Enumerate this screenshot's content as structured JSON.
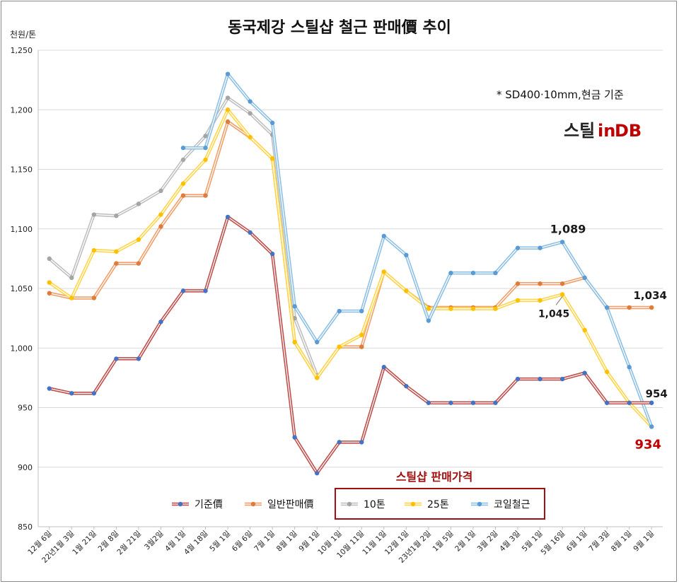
{
  "chart_data": {
    "type": "line",
    "title": "동국제강 스틸샵 철근 판매價 추이",
    "ylabel": "천원/톤",
    "ylim": [
      850,
      1250
    ],
    "yticks": [
      "850",
      "900",
      "950",
      "1,000",
      "1,050",
      "1,100",
      "1,150",
      "1,200",
      "1,250"
    ],
    "grid": "horizontal",
    "legend_position": "bottom",
    "categories": [
      "12월 6일",
      "22년1월 3일",
      "1월 21일",
      "2월 8일",
      "2월 21일",
      "3월2일",
      "4월 1일",
      "4월 18일",
      "5월 1일",
      "6월 6일",
      "7월 1일",
      "8월 1일",
      "9월 1일",
      "10월 1일",
      "10월 11일",
      "11월 1일",
      "12월 1일",
      "23년1월 2일",
      "1월 5일",
      "2월 1일",
      "3월 2일",
      "4월 3일",
      "5월 1일",
      "5월 16일",
      "6월 1일",
      "7월 3일",
      "8월 1일",
      "9월 1일"
    ],
    "series": [
      {
        "name": "기준價",
        "color": "#c0504d",
        "marker": "#4472c4",
        "values": [
          966,
          962,
          962,
          991,
          991,
          1022,
          1048,
          1048,
          1110,
          1097,
          1079,
          925,
          895,
          921,
          921,
          984,
          968,
          954,
          954,
          954,
          954,
          974,
          974,
          974,
          979,
          954,
          954,
          954
        ]
      },
      {
        "name": "일반판매價",
        "color": "#f0a06c",
        "marker": "#e07b39",
        "values": [
          1046,
          1042,
          1042,
          1071,
          1071,
          1102,
          1128,
          1128,
          1190,
          1177,
          1159,
          1005,
          975,
          1001,
          1001,
          1064,
          1048,
          1034,
          1034,
          1034,
          1034,
          1054,
          1054,
          1054,
          1059,
          1034,
          1034,
          1034
        ]
      },
      {
        "name": "10톤",
        "color": "#c0c0c0",
        "marker": "#a5a5a5",
        "values": [
          1075,
          1059,
          1112,
          1111,
          1121,
          1132,
          1158,
          1178,
          1210,
          1197,
          1179,
          1025,
          977,
          null,
          null,
          null,
          null,
          null,
          null,
          null,
          null,
          null,
          null,
          null,
          null,
          null,
          null,
          null
        ]
      },
      {
        "name": "25톤",
        "color": "#ffd54a",
        "marker": "#ffc000",
        "values": [
          1055,
          1042,
          1082,
          1081,
          1091,
          1112,
          1138,
          1158,
          1200,
          1177,
          1159,
          1005,
          975,
          1001,
          1011,
          1064,
          1048,
          1033,
          1033,
          1033,
          1033,
          1040,
          1040,
          1045,
          1015,
          980,
          954,
          934
        ]
      },
      {
        "name": "코일철근",
        "color": "#8ec0e4",
        "marker": "#5b9bd5",
        "values": [
          null,
          null,
          null,
          null,
          null,
          null,
          1168,
          1168,
          1230,
          1207,
          1189,
          1035,
          1005,
          1031,
          1031,
          1094,
          1078,
          1023,
          1063,
          1063,
          1063,
          1084,
          1084,
          1089,
          1059,
          1034,
          984,
          934
        ]
      }
    ],
    "annotations": [
      {
        "text": "1,089",
        "series": 4,
        "index": 23,
        "color": "#1a1a1a"
      },
      {
        "text": "1,045",
        "series": 3,
        "index": 23,
        "color": "#1a1a1a"
      },
      {
        "text": "1,034",
        "series": 1,
        "index": 27,
        "color": "#1a1a1a"
      },
      {
        "text": "954",
        "series": 0,
        "index": 27,
        "color": "#1a1a1a"
      },
      {
        "text": "934",
        "series": 4,
        "index": 27,
        "color": "#c00000"
      }
    ],
    "note": "* SD400·10mm,현금 기준",
    "logo_text": "스틸in DB",
    "box_label": "스틸샵 판매가격"
  }
}
